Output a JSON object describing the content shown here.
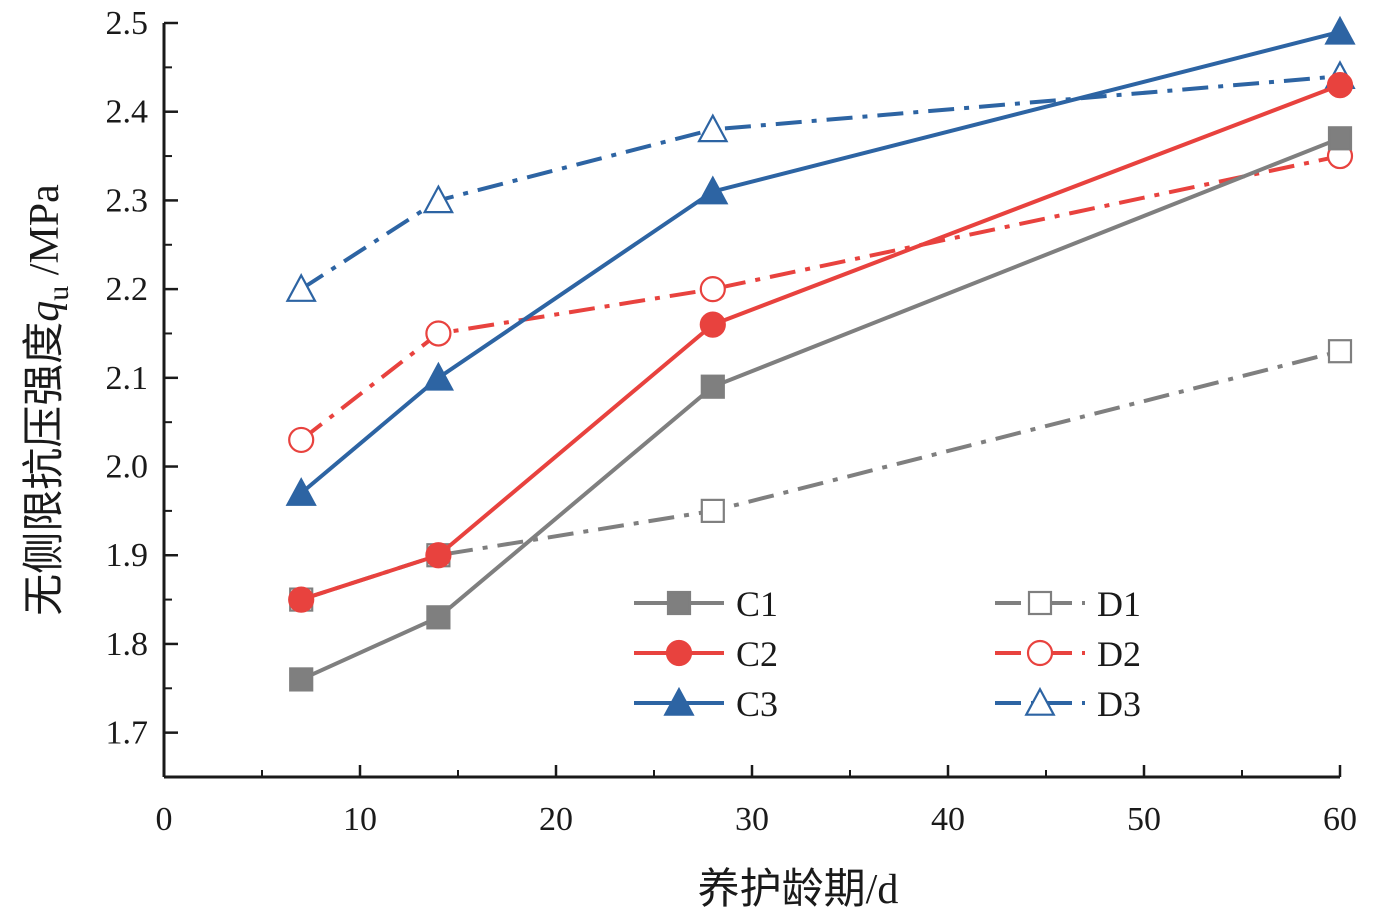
{
  "chart_data": {
    "type": "line",
    "xlabel": "养护龄期/d",
    "ylabel_main": "无侧限抗压强度",
    "ylabel_symbol": "q",
    "ylabel_subscript": "u",
    "ylabel_unit": " /MPa",
    "xlim": [
      0,
      60
    ],
    "ylim": [
      1.65,
      2.5
    ],
    "xticks": [
      "0",
      "10",
      "20",
      "30",
      "40",
      "50",
      "60"
    ],
    "yticks": [
      "1.7",
      "1.8",
      "1.9",
      "2.0",
      "2.1",
      "2.2",
      "2.3",
      "2.4",
      "2.5"
    ],
    "grid": false,
    "legend_position": "lower-center",
    "series": [
      {
        "name": "C1",
        "x": [
          7,
          14,
          28,
          60
        ],
        "values": [
          1.76,
          1.83,
          2.09,
          2.37
        ],
        "color": "#7f7f7f",
        "marker": "square",
        "filled": true,
        "dash": "solid"
      },
      {
        "name": "C2",
        "x": [
          7,
          14,
          28,
          60
        ],
        "values": [
          1.85,
          1.9,
          2.16,
          2.43
        ],
        "color": "#e8423e",
        "marker": "circle",
        "filled": true,
        "dash": "solid"
      },
      {
        "name": "C3",
        "x": [
          7,
          14,
          28,
          60
        ],
        "values": [
          1.97,
          2.1,
          2.31,
          2.49
        ],
        "color": "#2d64a3",
        "marker": "triangle",
        "filled": true,
        "dash": "solid"
      },
      {
        "name": "D1",
        "x": [
          7,
          14,
          28,
          60
        ],
        "values": [
          1.85,
          1.9,
          1.95,
          2.13
        ],
        "color": "#7f7f7f",
        "marker": "square",
        "filled": false,
        "dash": "dashdot"
      },
      {
        "name": "D2",
        "x": [
          7,
          14,
          28,
          60
        ],
        "values": [
          2.03,
          2.15,
          2.2,
          2.35
        ],
        "color": "#e8423e",
        "marker": "circle",
        "filled": false,
        "dash": "dashdot"
      },
      {
        "name": "D3",
        "x": [
          7,
          14,
          28,
          60
        ],
        "values": [
          2.2,
          2.3,
          2.38,
          2.44
        ],
        "color": "#2d64a3",
        "marker": "triangle",
        "filled": false,
        "dash": "dashdot"
      }
    ]
  }
}
